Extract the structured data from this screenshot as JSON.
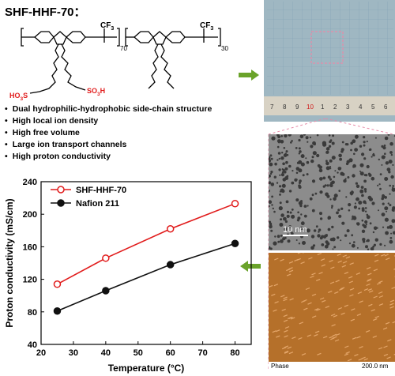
{
  "title": "SHF-HHF-70：",
  "structure": {
    "cf3_a": "CF",
    "cf3_a_sub": "3",
    "n70": "70",
    "cf3_b": "CF",
    "cf3_b_sub": "3",
    "n30": "30",
    "so3h_left": "HO",
    "so3h_left_sub": "3",
    "so3h_left_tail": "S",
    "so3h_right": "SO",
    "so3h_right_sub": "3",
    "so3h_right_tail": "H"
  },
  "bullets": [
    "Dual hydrophilic-hydrophobic side-chain structure",
    "High local ion density",
    "High free volume",
    "Large ion transport channels",
    "High proton conductivity"
  ],
  "ruler_labels": [
    "7",
    "8",
    "9",
    "10",
    "1",
    "2",
    "3",
    "4",
    "5",
    "6"
  ],
  "tem_scale": "10 nm",
  "afm_labels": {
    "mode": "Phase",
    "scale": "200.0 nm"
  },
  "colors": {
    "red": "#e11c1c",
    "black": "#111111",
    "arrow": "#6aa32a",
    "afm": "#b5702a",
    "pink_dash": "#e68aa8"
  },
  "chart_data": {
    "type": "line",
    "xlabel": "Temperature (°C)",
    "ylabel": "Proton conductivity (mS/cm)",
    "xlim": [
      20,
      85
    ],
    "ylim": [
      40,
      240
    ],
    "xticks": [
      20,
      30,
      40,
      50,
      60,
      70,
      80
    ],
    "yticks": [
      40,
      80,
      120,
      160,
      200,
      240
    ],
    "legend": "top-left",
    "series": [
      {
        "name": "SHF-HHF-70",
        "color": "#e11c1c",
        "marker": "open-circle",
        "x": [
          25,
          40,
          60,
          80
        ],
        "y": [
          114,
          146,
          182,
          213
        ]
      },
      {
        "name": "Nafion 211",
        "color": "#111111",
        "marker": "filled-circle",
        "x": [
          25,
          40,
          60,
          80
        ],
        "y": [
          81,
          106,
          138,
          164
        ]
      }
    ]
  }
}
